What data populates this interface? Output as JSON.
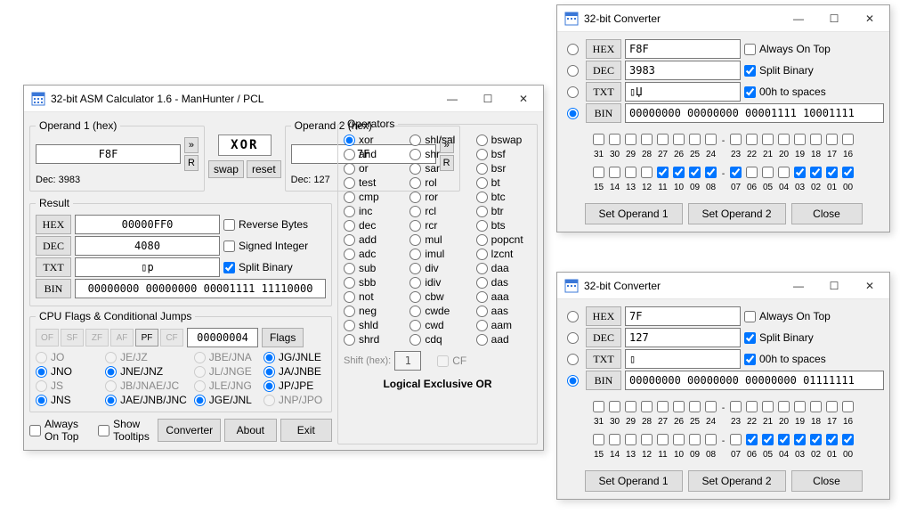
{
  "main_window": {
    "title": "32-bit ASM Calculator 1.6 - ManHunter / PCL",
    "operand1": {
      "legend": "Operand 1 (hex)",
      "value": "F8F",
      "dec_label": "Dec: 3983"
    },
    "operand2": {
      "legend": "Operand 2 (hex)",
      "value": "7F",
      "dec_label": "Dec: 127"
    },
    "op_box": "XOR",
    "swap_btn": "swap",
    "reset_btn": "reset",
    "arrow_btn": "»",
    "r_btn": "R",
    "result": {
      "legend": "Result",
      "hex_label": "HEX",
      "hex_value": "00000FF0",
      "dec_label": "DEC",
      "dec_value": "4080",
      "txt_label": "TXT",
      "txt_value": "▯p",
      "bin_label": "BIN",
      "bin_value": "00000000 00000000 00001111 11110000",
      "reverse_bytes": "Reverse Bytes",
      "signed_int": "Signed Integer",
      "split_binary": "Split Binary"
    },
    "cpu": {
      "legend": "CPU Flags & Conditional Jumps",
      "flags": [
        "OF",
        "SF",
        "ZF",
        "AF",
        "PF",
        "CF"
      ],
      "active_flag": "PF",
      "flag_count_value": "00000004",
      "flags_btn": "Flags",
      "jumps": [
        {
          "t": "JO",
          "c": false,
          "e": false
        },
        {
          "t": "JE/JZ",
          "c": false,
          "e": false
        },
        {
          "t": "JBE/JNA",
          "c": false,
          "e": false
        },
        {
          "t": "JG/JNLE",
          "c": true,
          "e": true
        },
        {
          "t": "JNO",
          "c": true,
          "e": true
        },
        {
          "t": "JNE/JNZ",
          "c": true,
          "e": true
        },
        {
          "t": "JL/JNGE",
          "c": false,
          "e": false
        },
        {
          "t": "JA/JNBE",
          "c": true,
          "e": true
        },
        {
          "t": "JS",
          "c": false,
          "e": false
        },
        {
          "t": "JB/JNAE/JC",
          "c": false,
          "e": false
        },
        {
          "t": "JLE/JNG",
          "c": false,
          "e": false
        },
        {
          "t": "JP/JPE",
          "c": true,
          "e": true
        },
        {
          "t": "JNS",
          "c": true,
          "e": true
        },
        {
          "t": "JAE/JNB/JNC",
          "c": true,
          "e": true
        },
        {
          "t": "JGE/JNL",
          "c": true,
          "e": true
        },
        {
          "t": "JNP/JPO",
          "c": false,
          "e": false
        }
      ]
    },
    "operators": {
      "legend": "Operators",
      "selected": "xor",
      "list": [
        "xor",
        "shl/sal",
        "bswap",
        "and",
        "shr",
        "bsf",
        "or",
        "sar",
        "bsr",
        "test",
        "rol",
        "bt",
        "cmp",
        "ror",
        "btc",
        "inc",
        "rcl",
        "btr",
        "dec",
        "rcr",
        "bts",
        "add",
        "mul",
        "popcnt",
        "adc",
        "imul",
        "lzcnt",
        "sub",
        "div",
        "daa",
        "sbb",
        "idiv",
        "das",
        "not",
        "cbw",
        "aaa",
        "neg",
        "cwde",
        "aas",
        "shld",
        "cwd",
        "aam",
        "shrd",
        "cdq",
        "aad"
      ],
      "shift_label": "Shift (hex):",
      "shift_value": "1",
      "cf_label": "CF",
      "desc": "Logical Exclusive OR"
    },
    "footer": {
      "always_on_top": "Always On Top",
      "show_tooltips": "Show Tooltips",
      "converter_btn": "Converter",
      "about_btn": "About",
      "exit_btn": "Exit"
    }
  },
  "conv1": {
    "title": "32-bit Converter",
    "hex_label": "HEX",
    "hex_value": "F8F",
    "dec_label": "DEC",
    "dec_value": "3983",
    "txt_label": "TXT",
    "txt_value": "▯Џ",
    "bin_label": "BIN",
    "bin_value": "00000000 00000000 00001111 10001111",
    "always_on_top": "Always On Top",
    "split_binary": "Split Binary",
    "zeroh_spaces": "00h to spaces",
    "bits_hi_labels": [
      "31",
      "30",
      "29",
      "28",
      "27",
      "26",
      "25",
      "24",
      "-",
      "23",
      "22",
      "21",
      "20",
      "19",
      "18",
      "17",
      "16"
    ],
    "bits_lo_labels": [
      "15",
      "14",
      "13",
      "12",
      "11",
      "10",
      "09",
      "08",
      "-",
      "07",
      "06",
      "05",
      "04",
      "03",
      "02",
      "01",
      "00"
    ],
    "bits": [
      0,
      0,
      0,
      0,
      0,
      0,
      0,
      0,
      0,
      0,
      0,
      0,
      0,
      0,
      0,
      0,
      0,
      0,
      0,
      0,
      1,
      1,
      1,
      1,
      1,
      0,
      0,
      0,
      1,
      1,
      1,
      1
    ],
    "set_op1": "Set Operand 1",
    "set_op2": "Set Operand 2",
    "close": "Close",
    "selected_radio": "BIN"
  },
  "conv2": {
    "title": "32-bit Converter",
    "hex_label": "HEX",
    "hex_value": "7F",
    "dec_label": "DEC",
    "dec_value": "127",
    "txt_label": "TXT",
    "txt_value": "▯",
    "bin_label": "BIN",
    "bin_value": "00000000 00000000 00000000 01111111",
    "always_on_top": "Always On Top",
    "split_binary": "Split Binary",
    "zeroh_spaces": "00h to spaces",
    "bits_hi_labels": [
      "31",
      "30",
      "29",
      "28",
      "27",
      "26",
      "25",
      "24",
      "-",
      "23",
      "22",
      "21",
      "20",
      "19",
      "18",
      "17",
      "16"
    ],
    "bits_lo_labels": [
      "15",
      "14",
      "13",
      "12",
      "11",
      "10",
      "09",
      "08",
      "-",
      "07",
      "06",
      "05",
      "04",
      "03",
      "02",
      "01",
      "00"
    ],
    "bits": [
      0,
      0,
      0,
      0,
      0,
      0,
      0,
      0,
      0,
      0,
      0,
      0,
      0,
      0,
      0,
      0,
      0,
      0,
      0,
      0,
      0,
      0,
      0,
      0,
      0,
      1,
      1,
      1,
      1,
      1,
      1,
      1
    ],
    "set_op1": "Set Operand 1",
    "set_op2": "Set Operand 2",
    "close": "Close",
    "selected_radio": "BIN"
  }
}
